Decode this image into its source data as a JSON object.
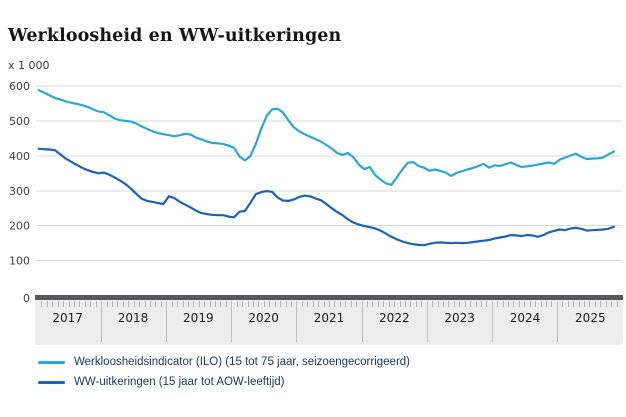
{
  "title": "Werkloosheid en WW-uitkeringen",
  "unit_label": "x 1 000",
  "colors": {
    "ilo_line": "#29a7da",
    "ww_line": "#1a63b7",
    "gridline": "#d9d9d9",
    "zero_axis_bar": "#58585a",
    "axis_band_bg": "#ededed",
    "tick": "#b3b3b3",
    "year_text": "#1d1d21",
    "y_label_text": "#424242",
    "legend_text": "#1b3a64",
    "title_text": "#161616"
  },
  "y_axis": {
    "ticks": [
      600,
      500,
      400,
      300,
      200,
      100,
      0
    ]
  },
  "x_axis": {
    "years": [
      "2017",
      "2018",
      "2019",
      "2020",
      "2021",
      "2022",
      "2023",
      "2024",
      "2025"
    ]
  },
  "legend": [
    {
      "label": "Werkloosheidsindicator (ILO) (15 tot 75 jaar, seizoengecorrigeerd)",
      "color": "#29a7da"
    },
    {
      "label": "WW-uitkeringen (15 jaar tot AOW-leeftijd)",
      "color": "#1a63b7"
    }
  ],
  "chart_data": {
    "type": "line",
    "title": "Werkloosheid en WW-uitkeringen",
    "ylabel": "x 1 000",
    "ylim": [
      0,
      600
    ],
    "grid": true,
    "legend_position": "bottom",
    "x_interval": "monthly",
    "x_start": "2017-01",
    "x_end": "2025-11",
    "x_year_labels": [
      "2017",
      "2018",
      "2019",
      "2020",
      "2021",
      "2022",
      "2023",
      "2024",
      "2025"
    ],
    "series": [
      {
        "name": "Werkloosheidsindicator (ILO) (15 tot 75 jaar, seizoengecorrigeerd)",
        "color": "#29a7da",
        "values": [
          588,
          581,
          573,
          566,
          561,
          556,
          552,
          549,
          545,
          540,
          533,
          527,
          525,
          516,
          507,
          502,
          500,
          498,
          492,
          484,
          477,
          470,
          465,
          462,
          459,
          456,
          459,
          463,
          461,
          452,
          447,
          441,
          437,
          436,
          434,
          429,
          423,
          398,
          387,
          399,
          434,
          477,
          514,
          533,
          535,
          524,
          502,
          482,
          470,
          462,
          455,
          448,
          441,
          431,
          421,
          408,
          403,
          408,
          396,
          375,
          362,
          368,
          345,
          332,
          321,
          317,
          338,
          361,
          380,
          382,
          371,
          366,
          357,
          361,
          357,
          352,
          342,
          351,
          356,
          361,
          365,
          371,
          377,
          366,
          373,
          371,
          376,
          381,
          374,
          368,
          370,
          372,
          375,
          378,
          381,
          377,
          389,
          395,
          401,
          406,
          397,
          391,
          392,
          393,
          395,
          404,
          412
        ]
      },
      {
        "name": "WW-uitkeringen (15 jaar tot AOW-leeftijd)",
        "color": "#1a63b7",
        "values": [
          420,
          419,
          418,
          416,
          404,
          392,
          383,
          374,
          366,
          359,
          354,
          350,
          352,
          346,
          338,
          329,
          319,
          306,
          291,
          277,
          271,
          268,
          265,
          262,
          284,
          279,
          268,
          260,
          252,
          243,
          236,
          233,
          231,
          230,
          230,
          226,
          224,
          240,
          242,
          265,
          290,
          296,
          299,
          297,
          281,
          272,
          271,
          275,
          282,
          286,
          284,
          278,
          273,
          262,
          250,
          239,
          230,
          218,
          209,
          203,
          199,
          196,
          192,
          186,
          177,
          168,
          161,
          155,
          150,
          147,
          145,
          144,
          148,
          151,
          152,
          151,
          150,
          151,
          150,
          151,
          153,
          155,
          157,
          159,
          163,
          166,
          169,
          173,
          172,
          170,
          173,
          172,
          168,
          173,
          181,
          185,
          189,
          187,
          192,
          194,
          191,
          186,
          187,
          188,
          189,
          191,
          197
        ]
      }
    ]
  }
}
